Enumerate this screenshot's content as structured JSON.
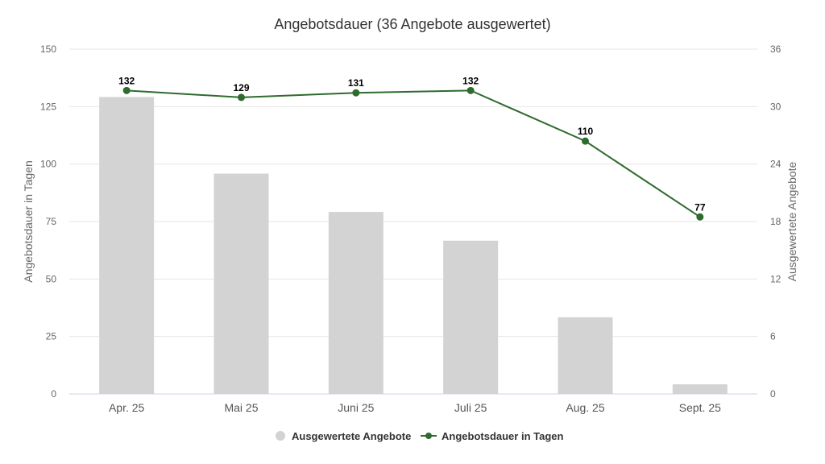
{
  "chart_data": {
    "type": "bar",
    "title": "Angebotsdauer (36 Angebote ausgewertet)",
    "categories": [
      "Apr. 25",
      "Mai 25",
      "Juni 25",
      "Juli 25",
      "Aug. 25",
      "Sept. 25"
    ],
    "ylabel_left": "Angebotsdauer in Tagen",
    "ylabel_right": "Ausgewertete Angebote",
    "left_axis": {
      "min": 0,
      "max": 150,
      "ticks": [
        "0",
        "25",
        "50",
        "75",
        "100",
        "125",
        "150"
      ]
    },
    "right_axis": {
      "min": 0,
      "max": 36,
      "ticks": [
        "0",
        "6",
        "12",
        "18",
        "24",
        "30",
        "36"
      ]
    },
    "grid": true,
    "legend_position": "bottom",
    "series": [
      {
        "name": "Ausgewertete Angebote",
        "type": "bar",
        "axis": "right",
        "color": "#d3d3d3",
        "values": [
          31,
          23,
          19,
          16,
          8,
          1
        ]
      },
      {
        "name": "Angebotsdauer in Tagen",
        "type": "line",
        "axis": "left",
        "color": "#2e6b2e",
        "values": [
          132,
          129,
          131,
          132,
          110,
          77
        ],
        "labels": [
          "132",
          "129",
          "131",
          "132",
          "110",
          "77"
        ]
      }
    ]
  }
}
